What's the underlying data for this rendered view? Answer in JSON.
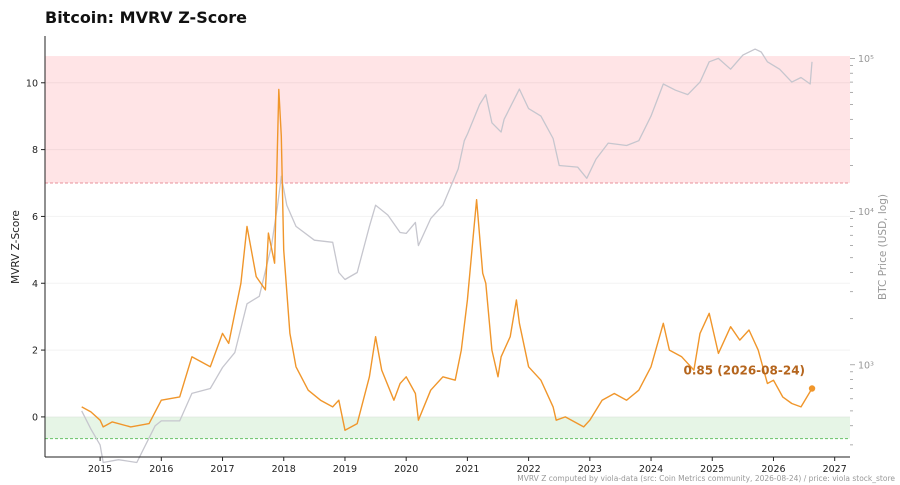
{
  "chart_data": {
    "type": "line",
    "title": "Bitcoin: MVRV Z-Score",
    "ylabel": "MVRV Z-Score",
    "y2label": "BTC Price (USD, log)",
    "ylim": [
      -1.2,
      11.4
    ],
    "y2lim": [
      250,
      140000
    ],
    "y2_scale": "log",
    "y_ticks": [
      0,
      2,
      4,
      6,
      8,
      10
    ],
    "y_tick_labels": [
      "0",
      "2",
      "4",
      "6",
      "8",
      "10"
    ],
    "y2_ticks": [
      1000,
      10000,
      100000
    ],
    "y2_tick_labels": [
      "10³",
      "10⁴",
      "10⁵"
    ],
    "x_ticks": [
      2015,
      2016,
      2017,
      2018,
      2019,
      2020,
      2021,
      2022,
      2023,
      2024,
      2025,
      2026,
      2027
    ],
    "x_tick_labels": [
      "2015",
      "2016",
      "2017",
      "2018",
      "2019",
      "2020",
      "2021",
      "2022",
      "2023",
      "2024",
      "2025",
      "2026",
      "2027"
    ],
    "xlim": [
      2014.1,
      2027.25
    ],
    "bands": [
      {
        "from": 7,
        "to": 10.8,
        "color": "#ffe4e6",
        "line_color": "#e8909b"
      },
      {
        "from": -0.65,
        "to": 0,
        "color": "#e6f5e6",
        "line_color": "#66c266"
      }
    ],
    "series": [
      {
        "color": "#f0962b",
        "axis": "left",
        "x": [
          2014.7,
          2014.85,
          2015.0,
          2015.05,
          2015.2,
          2015.5,
          2015.8,
          2016.0,
          2016.3,
          2016.5,
          2016.8,
          2017.0,
          2017.1,
          2017.3,
          2017.4,
          2017.55,
          2017.7,
          2017.75,
          2017.85,
          2017.92,
          2017.96,
          2018.0,
          2018.1,
          2018.2,
          2018.4,
          2018.6,
          2018.8,
          2018.9,
          2019.0,
          2019.2,
          2019.4,
          2019.5,
          2019.6,
          2019.8,
          2019.9,
          2020.0,
          2020.15,
          2020.2,
          2020.4,
          2020.6,
          2020.8,
          2020.9,
          2021.0,
          2021.1,
          2021.15,
          2021.25,
          2021.3,
          2021.4,
          2021.5,
          2021.55,
          2021.7,
          2021.8,
          2021.85,
          2022.0,
          2022.2,
          2022.4,
          2022.45,
          2022.6,
          2022.9,
          2023.0,
          2023.2,
          2023.4,
          2023.6,
          2023.8,
          2024.0,
          2024.2,
          2024.3,
          2024.5,
          2024.7,
          2024.8,
          2024.95,
          2025.1,
          2025.3,
          2025.45,
          2025.6,
          2025.75,
          2025.9,
          2026.0,
          2026.15,
          2026.3,
          2026.45,
          2026.63
        ],
        "y": [
          0.3,
          0.15,
          -0.1,
          -0.3,
          -0.15,
          -0.3,
          -0.2,
          0.5,
          0.6,
          1.8,
          1.5,
          2.5,
          2.2,
          4.0,
          5.7,
          4.2,
          3.8,
          5.5,
          4.6,
          9.8,
          8.4,
          5.0,
          2.5,
          1.5,
          0.8,
          0.5,
          0.3,
          0.5,
          -0.4,
          -0.2,
          1.2,
          2.4,
          1.4,
          0.5,
          1.0,
          1.2,
          0.7,
          -0.1,
          0.8,
          1.2,
          1.1,
          2.0,
          3.5,
          5.5,
          6.5,
          4.3,
          4.0,
          2.0,
          1.2,
          1.8,
          2.4,
          3.5,
          2.8,
          1.5,
          1.1,
          0.3,
          -0.1,
          0.0,
          -0.3,
          -0.1,
          0.5,
          0.7,
          0.5,
          0.8,
          1.5,
          2.8,
          2.0,
          1.8,
          1.4,
          2.5,
          3.1,
          1.9,
          2.7,
          2.3,
          2.6,
          2.0,
          1.0,
          1.1,
          0.6,
          0.4,
          0.3,
          0.85
        ]
      },
      {
        "color": "#c6c6ce",
        "axis": "right",
        "x": [
          2014.7,
          2014.85,
          2015.0,
          2015.05,
          2015.3,
          2015.6,
          2015.9,
          2016.0,
          2016.3,
          2016.5,
          2016.8,
          2017.0,
          2017.2,
          2017.4,
          2017.6,
          2017.8,
          2017.9,
          2017.96,
          2018.05,
          2018.2,
          2018.5,
          2018.8,
          2018.9,
          2019.0,
          2019.2,
          2019.4,
          2019.5,
          2019.7,
          2019.9,
          2020.0,
          2020.15,
          2020.2,
          2020.4,
          2020.6,
          2020.85,
          2020.95,
          2021.0,
          2021.2,
          2021.3,
          2021.4,
          2021.55,
          2021.6,
          2021.85,
          2022.0,
          2022.2,
          2022.4,
          2022.5,
          2022.8,
          2022.95,
          2023.1,
          2023.3,
          2023.6,
          2023.8,
          2024.0,
          2024.2,
          2024.4,
          2024.6,
          2024.8,
          2024.95,
          2025.1,
          2025.3,
          2025.5,
          2025.7,
          2025.8,
          2025.9,
          2026.1,
          2026.3,
          2026.45,
          2026.6,
          2026.63
        ],
        "y": [
          500,
          380,
          300,
          230,
          240,
          230,
          400,
          430,
          430,
          650,
          700,
          960,
          1200,
          2500,
          2800,
          6000,
          11000,
          17000,
          11000,
          8000,
          6500,
          6300,
          4000,
          3600,
          4000,
          8000,
          11000,
          9500,
          7300,
          7200,
          8500,
          6000,
          9000,
          11000,
          19000,
          29000,
          32000,
          50000,
          58000,
          38000,
          33000,
          40000,
          63000,
          47000,
          42000,
          30000,
          20000,
          19500,
          16500,
          22000,
          28000,
          27000,
          29000,
          42000,
          68000,
          62000,
          58000,
          70000,
          95000,
          100000,
          85000,
          105000,
          115000,
          110000,
          95000,
          85000,
          70000,
          75000,
          68000,
          95000
        ]
      }
    ],
    "annotation": {
      "text": "0.85  (2026-08-24)",
      "x": 2026.63,
      "y": 0.85
    },
    "footer": "MVRV Z computed by viola-data (src: Coin Metrics community, 2026-08-24) / price: viola stock_store"
  }
}
